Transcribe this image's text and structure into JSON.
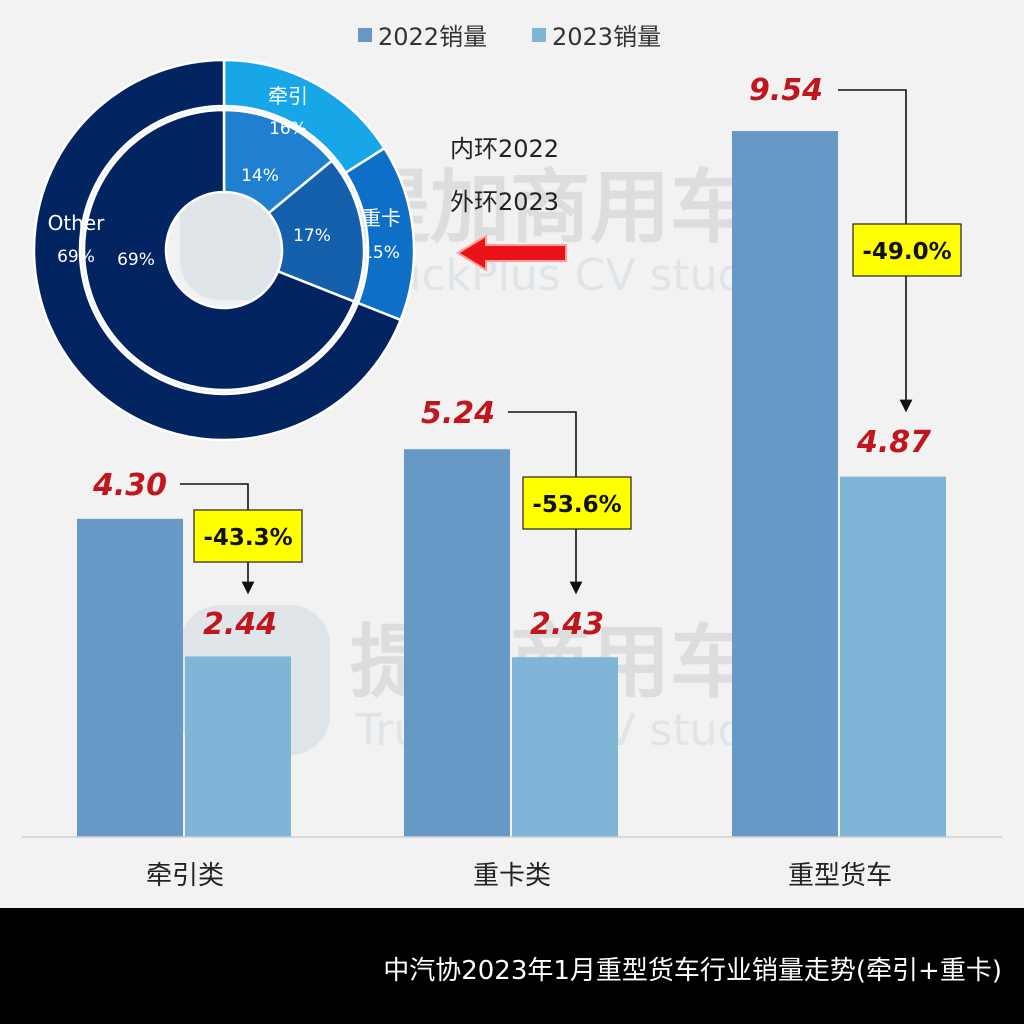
{
  "footer": {
    "title": "中汽协2023年1月重型货车行业销量走势(牵引+重卡)"
  },
  "watermark": {
    "cn": "提加商用车",
    "en": "TruckPlus CV studio"
  },
  "chart_data": [
    {
      "type": "bar",
      "categories": [
        "牵引类",
        "重卡类",
        "重型货车"
      ],
      "series": [
        {
          "name": "2022销量",
          "values": [
            4.3,
            5.24,
            9.54
          ],
          "labels": [
            "4.30",
            "5.24",
            "9.54"
          ],
          "color": "#6699c6"
        },
        {
          "name": "2023销量",
          "values": [
            2.44,
            2.43,
            4.87
          ],
          "labels": [
            "2.44",
            "2.43",
            "4.87"
          ],
          "color": "#7fb6d7"
        }
      ],
      "changes": [
        "-43.3%",
        "-53.6%",
        "-49.0%"
      ],
      "ylim": [
        0,
        10.5
      ],
      "legend": "top-center",
      "grid": false,
      "label_color": "#c0161e"
    },
    {
      "type": "pie",
      "subtype": "donut",
      "inner_ring": {
        "name": "内环2022",
        "slices": [
          {
            "label": "",
            "value": 14,
            "text": "14%",
            "color": "#1f7fd1"
          },
          {
            "label": "",
            "value": 17,
            "text": "17%",
            "color": "#1560ad"
          },
          {
            "label": "",
            "value": 69,
            "text": "69%",
            "color": "#022461"
          }
        ]
      },
      "outer_ring": {
        "name": "外环2023",
        "slices": [
          {
            "label": "牵引",
            "value": 16,
            "text": "16%",
            "color": "#17a6e8"
          },
          {
            "label": "重卡",
            "value": 15,
            "text": "15%",
            "color": "#0d6fc6"
          },
          {
            "label": "Other",
            "value": 69,
            "text": "69%",
            "color": "#022461"
          }
        ]
      },
      "legend_lines": [
        "内环2022",
        "外环2023"
      ]
    }
  ]
}
